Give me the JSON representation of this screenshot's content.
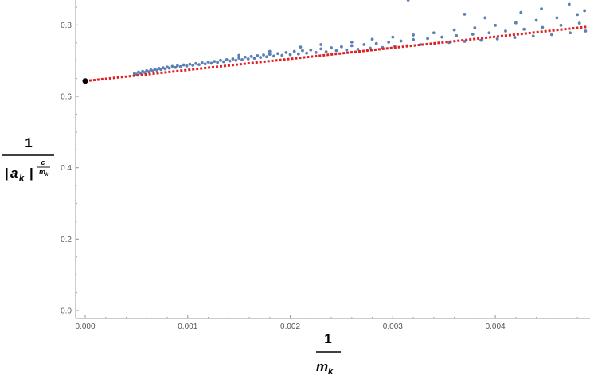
{
  "chart_data": {
    "type": "scatter",
    "xlim": [
      0,
      0.0049
    ],
    "ylim": [
      0,
      0.87
    ],
    "x_ticks": [
      0.0,
      0.001,
      0.002,
      0.003,
      0.004
    ],
    "x_tick_labels": [
      "0.000",
      "0.001",
      "0.002",
      "0.003",
      "0.004"
    ],
    "y_ticks": [
      0.0,
      0.2,
      0.4,
      0.6,
      0.8
    ],
    "y_tick_labels": [
      "0.0",
      "0.2",
      "0.4",
      "0.6",
      "0.8"
    ],
    "xlabel": {
      "numerator": "1",
      "base": "m",
      "subscript": "k"
    },
    "ylabel": {
      "numerator": "1",
      "bar": "|",
      "base": "a",
      "subscript": "k",
      "exp_numerator": "c",
      "exp_den_base": "m",
      "exp_den_sub": "k"
    },
    "grid": false,
    "scatter_color": "#5b80b5",
    "scatter_points": [
      [
        0.00048,
        0.664
      ],
      [
        0.0005,
        0.662
      ],
      [
        0.00052,
        0.668
      ],
      [
        0.00054,
        0.665
      ],
      [
        0.00056,
        0.67
      ],
      [
        0.00058,
        0.667
      ],
      [
        0.0006,
        0.672
      ],
      [
        0.00062,
        0.669
      ],
      [
        0.00064,
        0.674
      ],
      [
        0.00066,
        0.671
      ],
      [
        0.00068,
        0.676
      ],
      [
        0.0007,
        0.673
      ],
      [
        0.00072,
        0.678
      ],
      [
        0.00074,
        0.675
      ],
      [
        0.00076,
        0.68
      ],
      [
        0.00078,
        0.677
      ],
      [
        0.0008,
        0.682
      ],
      [
        0.00082,
        0.679
      ],
      [
        0.00085,
        0.684
      ],
      [
        0.00088,
        0.681
      ],
      [
        0.0009,
        0.686
      ],
      [
        0.00093,
        0.683
      ],
      [
        0.00096,
        0.688
      ],
      [
        0.00099,
        0.685
      ],
      [
        0.00102,
        0.69
      ],
      [
        0.00105,
        0.687
      ],
      [
        0.00108,
        0.692
      ],
      [
        0.00111,
        0.689
      ],
      [
        0.00114,
        0.694
      ],
      [
        0.00117,
        0.691
      ],
      [
        0.0012,
        0.696
      ],
      [
        0.00123,
        0.693
      ],
      [
        0.00126,
        0.698
      ],
      [
        0.00129,
        0.695
      ],
      [
        0.00132,
        0.701
      ],
      [
        0.00135,
        0.697
      ],
      [
        0.00138,
        0.703
      ],
      [
        0.00141,
        0.699
      ],
      [
        0.00144,
        0.705
      ],
      [
        0.00147,
        0.701
      ],
      [
        0.0015,
        0.707
      ],
      [
        0.00153,
        0.703
      ],
      [
        0.00156,
        0.71
      ],
      [
        0.00159,
        0.705
      ],
      [
        0.00162,
        0.712
      ],
      [
        0.00165,
        0.707
      ],
      [
        0.00168,
        0.714
      ],
      [
        0.00171,
        0.709
      ],
      [
        0.00174,
        0.716
      ],
      [
        0.00177,
        0.711
      ],
      [
        0.0018,
        0.718
      ],
      [
        0.00184,
        0.713
      ],
      [
        0.00188,
        0.72
      ],
      [
        0.00192,
        0.715
      ],
      [
        0.00196,
        0.723
      ],
      [
        0.002,
        0.717
      ],
      [
        0.00204,
        0.726
      ],
      [
        0.00208,
        0.719
      ],
      [
        0.00212,
        0.728
      ],
      [
        0.00216,
        0.721
      ],
      [
        0.0022,
        0.73
      ],
      [
        0.00225,
        0.723
      ],
      [
        0.0023,
        0.733
      ],
      [
        0.00235,
        0.725
      ],
      [
        0.0024,
        0.736
      ],
      [
        0.00245,
        0.728
      ],
      [
        0.0025,
        0.739
      ],
      [
        0.00255,
        0.73
      ],
      [
        0.0026,
        0.742
      ],
      [
        0.00266,
        0.732
      ],
      [
        0.00272,
        0.745
      ],
      [
        0.00278,
        0.735
      ],
      [
        0.00284,
        0.748
      ],
      [
        0.0029,
        0.737
      ],
      [
        0.00296,
        0.752
      ],
      [
        0.00302,
        0.74
      ],
      [
        0.00308,
        0.755
      ],
      [
        0.00314,
        0.742
      ],
      [
        0.0032,
        0.759
      ],
      [
        0.00327,
        0.745
      ],
      [
        0.00334,
        0.762
      ],
      [
        0.00341,
        0.748
      ],
      [
        0.00348,
        0.766
      ],
      [
        0.00355,
        0.751
      ],
      [
        0.00362,
        0.77
      ],
      [
        0.0037,
        0.754
      ],
      [
        0.00378,
        0.774
      ],
      [
        0.00386,
        0.757
      ],
      [
        0.00394,
        0.778
      ],
      [
        0.00402,
        0.761
      ],
      [
        0.0041,
        0.783
      ],
      [
        0.00419,
        0.765
      ],
      [
        0.00428,
        0.788
      ],
      [
        0.00437,
        0.769
      ],
      [
        0.00446,
        0.793
      ],
      [
        0.00455,
        0.773
      ],
      [
        0.00464,
        0.799
      ],
      [
        0.00473,
        0.778
      ],
      [
        0.00482,
        0.805
      ],
      [
        0.00488,
        0.783
      ],
      [
        0.0015,
        0.715
      ],
      [
        0.0018,
        0.726
      ],
      [
        0.0021,
        0.738
      ],
      [
        0.0023,
        0.745
      ],
      [
        0.0026,
        0.752
      ],
      [
        0.0028,
        0.76
      ],
      [
        0.003,
        0.766
      ],
      [
        0.0032,
        0.772
      ],
      [
        0.0034,
        0.778
      ],
      [
        0.0036,
        0.786
      ],
      [
        0.0038,
        0.792
      ],
      [
        0.004,
        0.799
      ],
      [
        0.0042,
        0.806
      ],
      [
        0.0044,
        0.813
      ],
      [
        0.0046,
        0.82
      ],
      [
        0.0048,
        0.829
      ],
      [
        0.00315,
        0.87
      ],
      [
        0.0037,
        0.83
      ],
      [
        0.0039,
        0.82
      ],
      [
        0.00425,
        0.835
      ],
      [
        0.00445,
        0.845
      ],
      [
        0.00472,
        0.858
      ],
      [
        0.00487,
        0.84
      ]
    ],
    "fit_line": {
      "color": "#e02020",
      "x": [
        0.0,
        0.0049
      ],
      "y": [
        0.643,
        0.795
      ]
    },
    "intercept_point": {
      "x": 0.0,
      "y": 0.643,
      "color": "#000000"
    }
  }
}
